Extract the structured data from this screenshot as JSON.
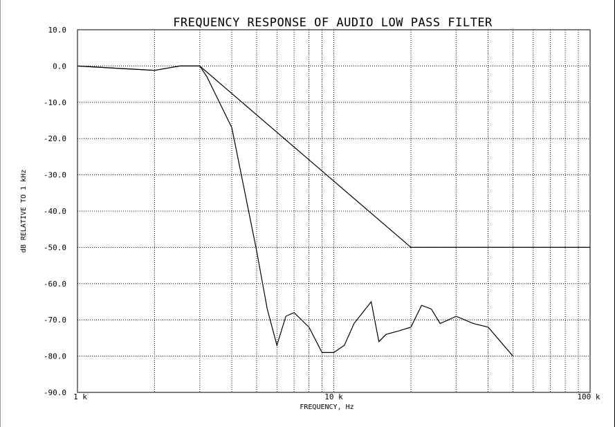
{
  "chart_data": {
    "type": "line",
    "title": "FREQUENCY RESPONSE OF AUDIO LOW PASS FILTER",
    "xlabel": "FREQUENCY, Hz",
    "ylabel": "dB RELATIVE TO 1 kHz",
    "x_scale": "log",
    "xlim": [
      1000,
      100000
    ],
    "ylim": [
      -90,
      10
    ],
    "grid": true,
    "x_tick_labels": [
      {
        "value": 1000,
        "label": "1 k"
      },
      {
        "value": 10000,
        "label": "10 k"
      },
      {
        "value": 100000,
        "label": "100 k"
      }
    ],
    "y_ticks": [
      10,
      0,
      -10,
      -20,
      -30,
      -40,
      -50,
      -60,
      -70,
      -80,
      -90
    ],
    "y_tick_labels": [
      "10.0",
      "0.0",
      "-10.0",
      "-20.0",
      "-30.0",
      "-40.0",
      "-50.0",
      "-60.0",
      "-70.0",
      "-80.0",
      "-90.0"
    ],
    "series": [
      {
        "x": [
          1000,
          2000,
          2500,
          3000,
          20000,
          100000
        ],
        "y": [
          0,
          -1.2,
          0,
          0,
          -50,
          -50
        ]
      },
      {
        "x": [
          1000,
          1500,
          2000,
          2500,
          3000,
          3200,
          4000,
          5000,
          5500,
          6000,
          6500,
          7000,
          8000,
          9000,
          10000,
          11000,
          12000,
          14000,
          15000,
          16000,
          18000,
          20000,
          22000,
          24000,
          26000,
          28000,
          30000,
          35000,
          40000,
          50000
        ],
        "y": [
          0,
          -0.7,
          -1.2,
          0,
          0,
          -3,
          -17,
          -51,
          -67,
          -77,
          -69,
          -68,
          -72,
          -79,
          -79,
          -77,
          -71,
          -65,
          -76,
          -74,
          -73,
          -72,
          -66,
          -67,
          -71,
          -70,
          -69,
          -71,
          -72,
          -80
        ]
      }
    ]
  }
}
